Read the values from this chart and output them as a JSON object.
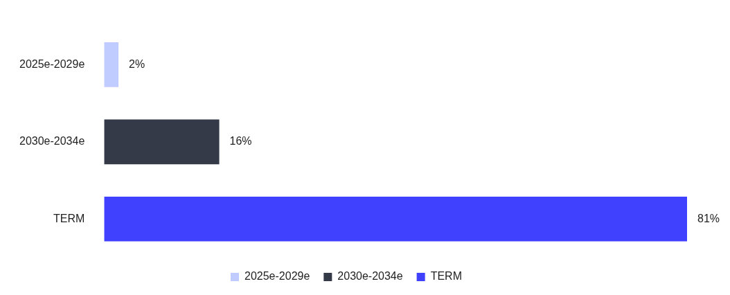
{
  "chart_data": {
    "type": "bar",
    "orientation": "horizontal",
    "stacked": true,
    "categories": [
      "2025e-2029e",
      "2030e-2034e",
      "TERM"
    ],
    "series": [
      {
        "name": "2025e-2029e",
        "color": "#c0cbff",
        "values": [
          2,
          null,
          null
        ],
        "value_labels": [
          "2%",
          null,
          null
        ]
      },
      {
        "name": "2030e-2034e",
        "color": "#343a48",
        "values": [
          null,
          16,
          null
        ],
        "value_labels": [
          null,
          "16%",
          null
        ]
      },
      {
        "name": "TERM",
        "color": "#4040ff",
        "values": [
          null,
          null,
          81
        ],
        "value_labels": [
          null,
          null,
          "81%"
        ]
      }
    ],
    "legend": "bottom"
  }
}
